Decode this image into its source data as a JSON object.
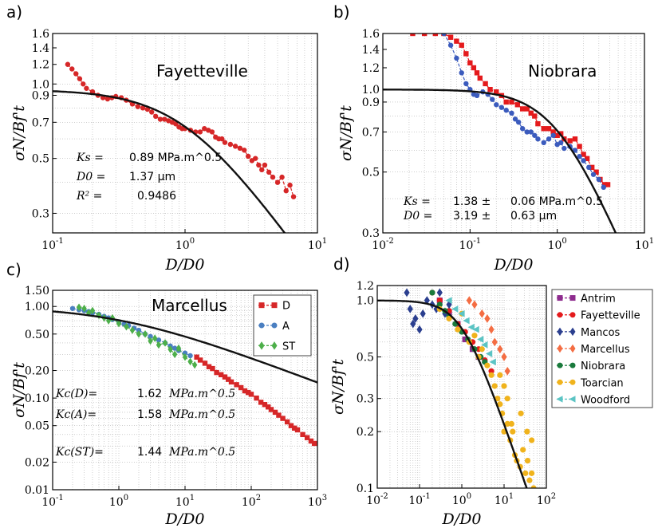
{
  "chart_data": [
    {
      "id": "a",
      "type": "line",
      "panel_label": "a)",
      "title": "Fayetteville",
      "xlabel": "D/D0",
      "ylabel": "σN/Bf't",
      "xscale": "log",
      "yscale": "log",
      "xlim": [
        0.1,
        10
      ],
      "ylim": [
        0.25,
        1.6
      ],
      "xticks": [
        {
          "v": 0.1,
          "b": "10",
          "e": "-1"
        },
        {
          "v": 1,
          "b": "10",
          "e": "0"
        },
        {
          "v": 10,
          "b": "10",
          "e": "1"
        }
      ],
      "yticks": [
        {
          "v": 0.3,
          "t": "0.3"
        },
        {
          "v": 0.5,
          "t": "0.5"
        },
        {
          "v": 0.7,
          "t": "0.7"
        },
        {
          "v": 0.9,
          "t": "0.9"
        },
        {
          "v": 1.0,
          "t": "1.0"
        },
        {
          "v": 1.2,
          "t": "1.2"
        },
        {
          "v": 1.4,
          "t": "1.4"
        },
        {
          "v": 1.6,
          "t": "1.6"
        }
      ],
      "grid": true,
      "fit": {
        "a": 0.95,
        "n": 1.5
      },
      "series": [
        {
          "marker": "circle",
          "color": "#d62728",
          "x": [
            0.13,
            0.14,
            0.15,
            0.16,
            0.17,
            0.18,
            0.2,
            0.22,
            0.24,
            0.26,
            0.28,
            0.3,
            0.33,
            0.36,
            0.4,
            0.44,
            0.48,
            0.52,
            0.56,
            0.6,
            0.65,
            0.7,
            0.75,
            0.8,
            0.85,
            0.9,
            0.95,
            1.0,
            1.1,
            1.2,
            1.3,
            1.4,
            1.5,
            1.6,
            1.7,
            1.8,
            1.9,
            2.0,
            2.2,
            2.4,
            2.6,
            2.8,
            3.0,
            3.2,
            3.4,
            3.6,
            3.8,
            4.0,
            4.3,
            4.6,
            5.0,
            5.4,
            5.8,
            6.2,
            6.6
          ],
          "y": [
            1.2,
            1.15,
            1.1,
            1.05,
            1.0,
            0.96,
            0.93,
            0.9,
            0.88,
            0.87,
            0.88,
            0.89,
            0.88,
            0.86,
            0.83,
            0.81,
            0.8,
            0.79,
            0.77,
            0.74,
            0.72,
            0.72,
            0.71,
            0.7,
            0.69,
            0.67,
            0.66,
            0.66,
            0.65,
            0.64,
            0.64,
            0.66,
            0.65,
            0.64,
            0.61,
            0.6,
            0.6,
            0.58,
            0.57,
            0.56,
            0.55,
            0.54,
            0.51,
            0.49,
            0.5,
            0.47,
            0.45,
            0.47,
            0.44,
            0.42,
            0.4,
            0.42,
            0.37,
            0.39,
            0.35
          ]
        }
      ],
      "annotations": [
        {
          "k": "Ks =",
          "v": "0.89 MPa.m^0.5"
        },
        {
          "k": "D0 =",
          "v": "1.37 μm"
        },
        {
          "k": "R² =",
          "v": "0.9486"
        }
      ]
    },
    {
      "id": "b",
      "type": "line",
      "panel_label": "b)",
      "title": "Niobrara",
      "xlabel": "D/D0",
      "ylabel": "σN/Bf't",
      "xscale": "log",
      "yscale": "log",
      "xlim": [
        0.01,
        10
      ],
      "ylim": [
        0.3,
        1.6
      ],
      "xticks": [
        {
          "v": 0.01,
          "b": "10",
          "e": "-2"
        },
        {
          "v": 0.1,
          "b": "10",
          "e": "-1"
        },
        {
          "v": 1,
          "b": "10",
          "e": "0"
        },
        {
          "v": 10,
          "b": "10",
          "e": "1"
        }
      ],
      "yticks": [
        {
          "v": 0.3,
          "t": "0.3"
        },
        {
          "v": 0.5,
          "t": "0.5"
        },
        {
          "v": 0.7,
          "t": "0.7"
        },
        {
          "v": 0.9,
          "t": "0.9"
        },
        {
          "v": 1.0,
          "t": "1.0"
        },
        {
          "v": 1.2,
          "t": "1.2"
        },
        {
          "v": 1.4,
          "t": "1.4"
        },
        {
          "v": 1.6,
          "t": "1.6"
        }
      ],
      "grid": true,
      "fit": {
        "a": 1.0,
        "n": 1.5
      },
      "series": [
        {
          "marker": "square",
          "color": "#e41a1c",
          "x": [
            0.022,
            0.03,
            0.04,
            0.05,
            0.06,
            0.07,
            0.08,
            0.09,
            0.1,
            0.11,
            0.12,
            0.13,
            0.15,
            0.17,
            0.2,
            0.23,
            0.26,
            0.3,
            0.35,
            0.4,
            0.45,
            0.5,
            0.55,
            0.6,
            0.7,
            0.8,
            0.9,
            1.0,
            1.1,
            1.2,
            1.4,
            1.6,
            1.8,
            2.0,
            2.2,
            2.5,
            2.8,
            3.1,
            3.5,
            3.8
          ],
          "y": [
            1.6,
            1.6,
            1.6,
            1.6,
            1.55,
            1.5,
            1.45,
            1.35,
            1.25,
            1.2,
            1.15,
            1.1,
            1.05,
            1.0,
            0.98,
            0.95,
            0.9,
            0.9,
            0.88,
            0.85,
            0.85,
            0.82,
            0.8,
            0.75,
            0.72,
            0.72,
            0.7,
            0.68,
            0.69,
            0.66,
            0.65,
            0.66,
            0.62,
            0.58,
            0.56,
            0.52,
            0.5,
            0.47,
            0.45,
            0.45
          ]
        },
        {
          "marker": "circle",
          "color": "#3b5bbd",
          "x": [
            0.05,
            0.06,
            0.07,
            0.08,
            0.09,
            0.1,
            0.11,
            0.12,
            0.14,
            0.16,
            0.18,
            0.2,
            0.23,
            0.26,
            0.3,
            0.33,
            0.36,
            0.4,
            0.45,
            0.5,
            0.55,
            0.6,
            0.7,
            0.8,
            0.9,
            1.0,
            1.1,
            1.2,
            1.4,
            1.6,
            1.8,
            2.0,
            2.3,
            2.6,
            3.0,
            3.4
          ],
          "y": [
            1.6,
            1.45,
            1.3,
            1.15,
            1.05,
            1.0,
            0.96,
            0.95,
            0.98,
            0.96,
            0.92,
            0.88,
            0.86,
            0.84,
            0.82,
            0.78,
            0.76,
            0.72,
            0.7,
            0.7,
            0.68,
            0.66,
            0.64,
            0.66,
            0.68,
            0.63,
            0.64,
            0.61,
            0.62,
            0.6,
            0.57,
            0.55,
            0.52,
            0.49,
            0.47,
            0.44
          ]
        }
      ],
      "annotations": [
        {
          "k": "Ks =",
          "v": "1.38 ±",
          "e": "0.06 MPa.m^0.5"
        },
        {
          "k": "D0 =",
          "v": "3.19 ±",
          "e": "0.63 μm"
        }
      ]
    },
    {
      "id": "c",
      "type": "line",
      "panel_label": "c)",
      "title": "Marcellus",
      "xlabel": "D/D0",
      "ylabel": "σN/Bf't",
      "xscale": "log",
      "yscale": "log",
      "xlim": [
        0.1,
        1000
      ],
      "ylim": [
        0.01,
        1.5
      ],
      "xticks": [
        {
          "v": 0.1,
          "b": "10",
          "e": "-1"
        },
        {
          "v": 1,
          "b": "10",
          "e": "0"
        },
        {
          "v": 10,
          "b": "10",
          "e": "1"
        },
        {
          "v": 100,
          "b": "10",
          "e": "2"
        },
        {
          "v": 1000,
          "b": "10",
          "e": "3"
        }
      ],
      "yticks": [
        {
          "v": 0.01,
          "t": "0.01"
        },
        {
          "v": 0.02,
          "t": "0.02"
        },
        {
          "v": 0.05,
          "t": "0.05"
        },
        {
          "v": 0.1,
          "t": "0.10"
        },
        {
          "v": 0.2,
          "t": "0.20"
        },
        {
          "v": 0.5,
          "t": "0.50"
        },
        {
          "v": 1.0,
          "t": "1.00"
        },
        {
          "v": 1.5,
          "t": "1.50"
        }
      ],
      "grid": true,
      "fit": {
        "a": 1.0,
        "n": 0.55
      },
      "legend": {
        "position": "top-right",
        "entries": [
          "D",
          "A",
          "ST"
        ]
      },
      "series": [
        {
          "name": "D",
          "marker": "square",
          "color": "#d62728",
          "x": [
            15,
            17,
            20,
            23,
            26,
            30,
            35,
            40,
            45,
            50,
            60,
            70,
            80,
            90,
            100,
            120,
            140,
            160,
            180,
            200,
            230,
            260,
            300,
            350,
            400,
            450,
            500,
            600,
            700,
            800,
            900
          ],
          "y": [
            0.28,
            0.26,
            0.24,
            0.22,
            0.21,
            0.19,
            0.18,
            0.17,
            0.16,
            0.15,
            0.14,
            0.13,
            0.12,
            0.115,
            0.11,
            0.1,
            0.09,
            0.085,
            0.08,
            0.075,
            0.07,
            0.065,
            0.06,
            0.055,
            0.05,
            0.047,
            0.045,
            0.04,
            0.037,
            0.034,
            0.032
          ]
        },
        {
          "name": "A",
          "marker": "circle",
          "color": "#4a7fc1",
          "x": [
            0.2,
            0.25,
            0.3,
            0.35,
            0.4,
            0.5,
            0.6,
            0.7,
            0.8,
            1.0,
            1.2,
            1.4,
            1.7,
            2.0,
            2.5,
            3,
            4,
            5,
            6,
            7,
            8,
            10,
            12
          ],
          "y": [
            0.95,
            0.92,
            0.9,
            0.88,
            0.85,
            0.82,
            0.78,
            0.75,
            0.72,
            0.68,
            0.64,
            0.62,
            0.58,
            0.55,
            0.5,
            0.47,
            0.43,
            0.4,
            0.37,
            0.35,
            0.33,
            0.31,
            0.29
          ]
        },
        {
          "name": "ST",
          "marker": "diamond",
          "color": "#4daf4a",
          "x": [
            0.25,
            0.3,
            0.35,
            0.4,
            0.5,
            0.6,
            0.7,
            0.8,
            1.0,
            1.3,
            1.6,
            2.0,
            2.5,
            3,
            3.5,
            4,
            5,
            6,
            7,
            8,
            10,
            12,
            14
          ],
          "y": [
            0.98,
            0.95,
            0.85,
            0.9,
            0.8,
            0.75,
            0.7,
            0.75,
            0.65,
            0.6,
            0.55,
            0.5,
            0.5,
            0.42,
            0.45,
            0.38,
            0.4,
            0.34,
            0.3,
            0.35,
            0.28,
            0.25,
            0.23
          ]
        }
      ],
      "annotations": [
        {
          "k": "Kc(D)=",
          "v": "1.62",
          "u": "MPa.m^0.5"
        },
        {
          "k": "Kc(A)=",
          "v": "1.58",
          "u": "MPa.m^0.5"
        },
        {
          "k": "Kc(ST)=",
          "v": "1.44",
          "u": "MPa.m^0.5"
        }
      ]
    },
    {
      "id": "d",
      "type": "scatter",
      "panel_label": "d)",
      "title": "",
      "xlabel": "D/D0",
      "ylabel": "σN/Bf't",
      "xscale": "log",
      "yscale": "log",
      "xlim": [
        0.01,
        100
      ],
      "ylim": [
        0.1,
        1.2
      ],
      "xticks": [
        {
          "v": 0.01,
          "b": "10",
          "e": "-2"
        },
        {
          "v": 0.1,
          "b": "10",
          "e": "-1"
        },
        {
          "v": 1,
          "b": "10",
          "e": "0"
        },
        {
          "v": 10,
          "b": "10",
          "e": "1"
        },
        {
          "v": 100,
          "b": "10",
          "e": "2"
        }
      ],
      "yticks": [
        {
          "v": 0.1,
          "t": "0.1"
        },
        {
          "v": 0.2,
          "t": "0.2"
        },
        {
          "v": 0.3,
          "t": "0.3"
        },
        {
          "v": 0.5,
          "t": "0.5"
        },
        {
          "v": 1.0,
          "t": "1.0"
        },
        {
          "v": 1.2,
          "t": "1.2"
        }
      ],
      "grid": true,
      "fit": {
        "a": 1.0,
        "n": 1.3
      },
      "legend": {
        "position": "right",
        "entries": [
          "Antrim",
          "Fayetteville",
          "Mancos",
          "Marcellus",
          "Niobrara",
          "Toarcian",
          "Woodford"
        ]
      },
      "series": [
        {
          "name": "Antrim",
          "marker": "square",
          "color": "#8e2c8e",
          "x": [
            0.3,
            0.5,
            0.8,
            1.2,
            1.8,
            2.5
          ],
          "y": [
            1.0,
            0.85,
            0.75,
            0.62,
            0.55,
            0.5
          ]
        },
        {
          "name": "Fayetteville",
          "marker": "circle",
          "color": "#e41a1c",
          "x": [
            0.2,
            0.3,
            0.5,
            0.8,
            1.2,
            1.8,
            2.5,
            3.5,
            5
          ],
          "y": [
            1.1,
            1.0,
            0.88,
            0.75,
            0.68,
            0.6,
            0.55,
            0.48,
            0.42
          ]
        },
        {
          "name": "Mancos",
          "marker": "diamond",
          "color": "#2b3f8f",
          "x": [
            0.05,
            0.06,
            0.07,
            0.08,
            0.1,
            0.12,
            0.15,
            0.2,
            0.25,
            0.3,
            0.4,
            0.5
          ],
          "y": [
            1.1,
            0.9,
            0.75,
            0.8,
            0.7,
            0.85,
            1.0,
            0.95,
            0.9,
            1.1,
            0.85,
            0.95
          ]
        },
        {
          "name": "Marcellus",
          "marker": "diamond",
          "color": "#f46d43",
          "x": [
            1.5,
            2,
            3,
            4,
            5,
            6,
            8,
            10,
            12
          ],
          "y": [
            1.0,
            0.95,
            0.85,
            0.8,
            0.7,
            0.6,
            0.55,
            0.5,
            0.42
          ]
        },
        {
          "name": "Niobrara",
          "marker": "circle",
          "color": "#1a7a3c",
          "x": [
            0.2,
            0.3,
            0.4,
            0.5,
            0.7,
            1.0,
            1.4,
            2.0,
            2.8,
            3.5
          ],
          "y": [
            1.1,
            0.95,
            0.88,
            0.82,
            0.75,
            0.68,
            0.62,
            0.55,
            0.5,
            0.47
          ]
        },
        {
          "name": "Toarcian",
          "marker": "circle",
          "color": "#f0b31c",
          "x": [
            0.3,
            0.5,
            0.8,
            1.0,
            1.5,
            2,
            2.5,
            3,
            4,
            5,
            6,
            7,
            8,
            9,
            10,
            12,
            14,
            16,
            18,
            20,
            24,
            28,
            32,
            36,
            40,
            45,
            50,
            45,
            35,
            25,
            15,
            12,
            10,
            8
          ],
          "y": [
            0.9,
            0.8,
            0.7,
            0.85,
            0.6,
            0.65,
            0.5,
            0.55,
            0.45,
            0.4,
            0.35,
            0.3,
            0.28,
            0.25,
            0.2,
            0.22,
            0.18,
            0.2,
            0.15,
            0.14,
            0.13,
            0.16,
            0.12,
            0.14,
            0.11,
            0.12,
            0.1,
            0.18,
            0.2,
            0.25,
            0.22,
            0.3,
            0.35,
            0.4
          ]
        },
        {
          "name": "Woodford",
          "marker": "triangle",
          "color": "#5bc4c4",
          "x": [
            0.5,
            0.7,
            1.0,
            1.3,
            1.7,
            2.2,
            2.8,
            3.5,
            4.5,
            5.5
          ],
          "y": [
            1.0,
            0.9,
            0.85,
            0.78,
            0.72,
            0.7,
            0.62,
            0.58,
            0.52,
            0.47
          ]
        }
      ]
    }
  ]
}
